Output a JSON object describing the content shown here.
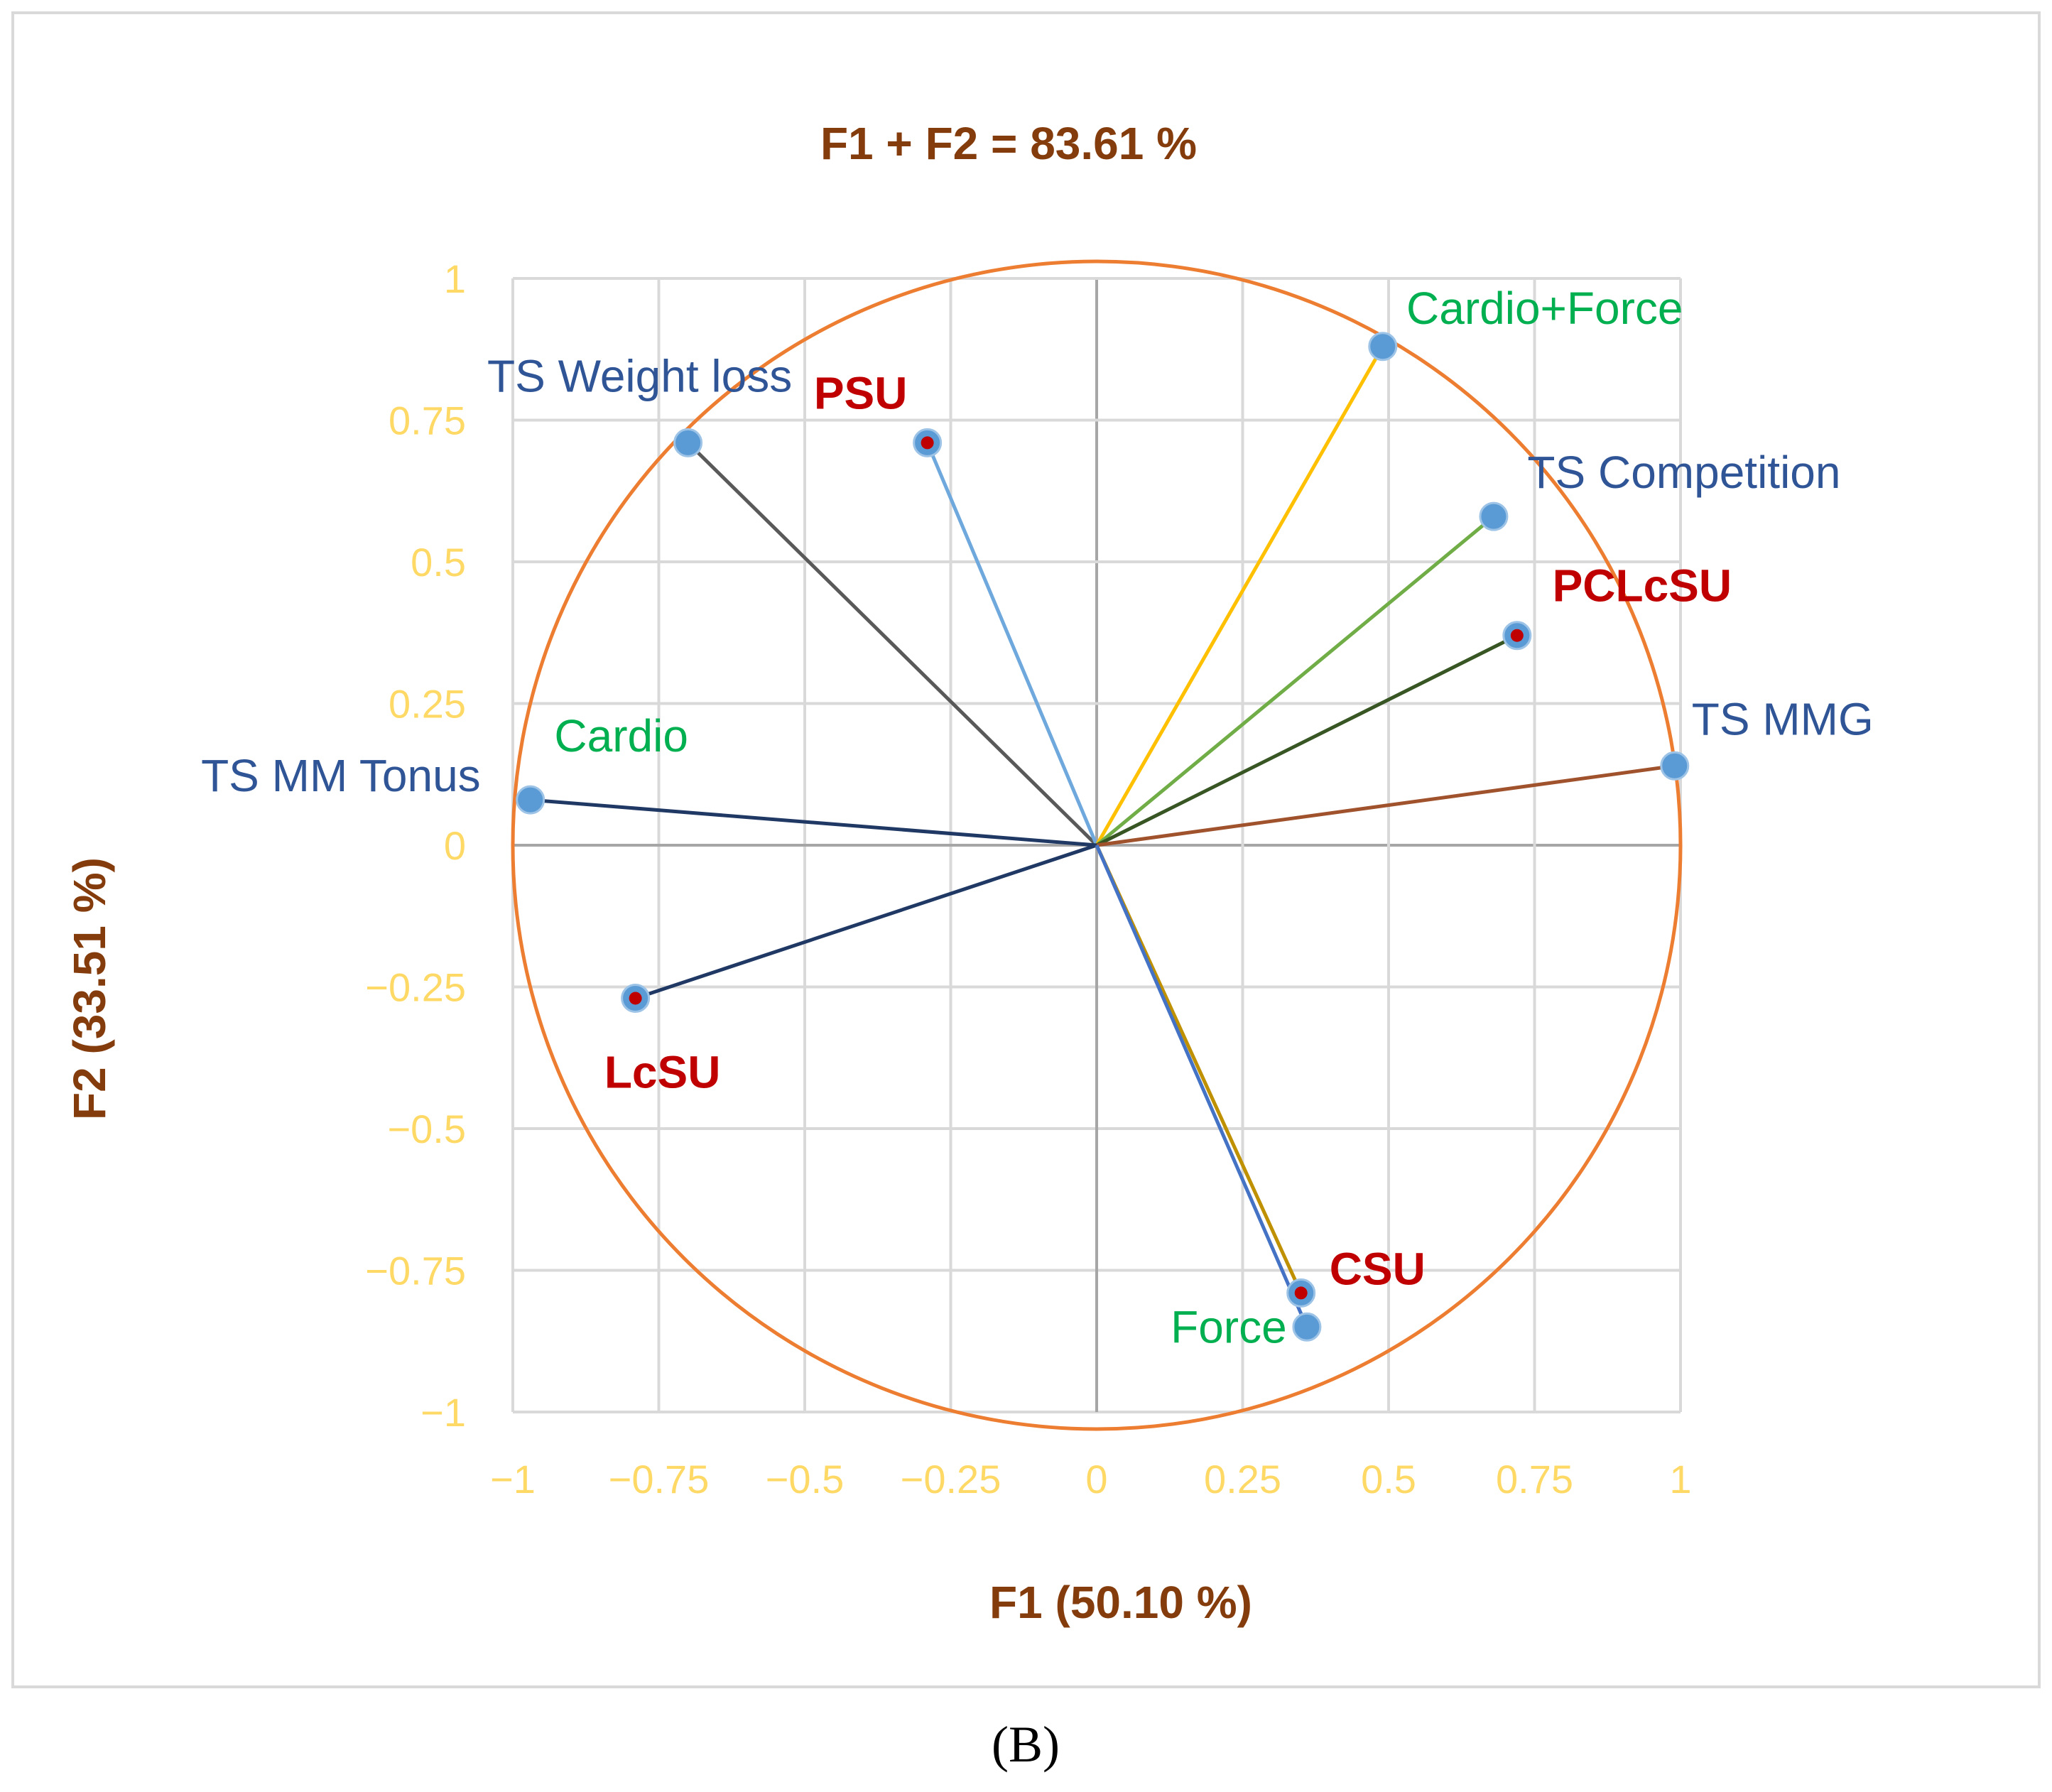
{
  "chart_data": {
    "type": "scatter",
    "title": "F1 + F2 = 83.61 %",
    "xlabel": "F1 (50.10 %)",
    "ylabel": "F2 (33.51 %)",
    "xlim": [
      -1,
      1
    ],
    "ylim": [
      -1,
      1
    ],
    "xticks": [
      "−1",
      "−0.75",
      "−0.5",
      "−0.25",
      "0",
      "0.25",
      "0.5",
      "0.75",
      "1"
    ],
    "yticks": [
      "1",
      "0.75",
      "0.5",
      "0.25",
      "0",
      "−0.25",
      "−0.5",
      "−0.75",
      "−1"
    ],
    "grid": true,
    "circle_radius": 1,
    "variables": [
      {
        "name": "TS Weight loss",
        "x": -0.7,
        "y": 0.71,
        "color": "#595959",
        "label_color": "#2f5597"
      },
      {
        "name": "PSU",
        "x": -0.29,
        "y": 0.71,
        "color": "#6fa8dc",
        "label_color": "#c00000",
        "observation": true
      },
      {
        "name": "Cardio+Force",
        "x": 0.49,
        "y": 0.88,
        "color": "#ffc000",
        "label_color": "#00b050"
      },
      {
        "name": "TS Competition",
        "x": 0.68,
        "y": 0.58,
        "color": "#70ad47",
        "label_color": "#2f5597"
      },
      {
        "name": "PCLcSU",
        "x": 0.72,
        "y": 0.37,
        "color": "#375623",
        "label_color": "#c00000",
        "observation": true
      },
      {
        "name": "TS MMG",
        "x": 0.99,
        "y": 0.14,
        "color": "#a0522d",
        "label_color": "#2f5597"
      },
      {
        "name": "TS MM  Tonus",
        "x": -0.97,
        "y": 0.08,
        "color": "#1f3864",
        "label_color": "#2f5597"
      },
      {
        "name": "Cardio",
        "x": -0.97,
        "y": 0.08,
        "color": "#1f3864",
        "label_color": "#00b050",
        "label_only": true
      },
      {
        "name": "LcSU",
        "x": -0.79,
        "y": -0.27,
        "color": "#1f3864",
        "label_color": "#c00000",
        "observation": true
      },
      {
        "name": "CSU",
        "x": 0.35,
        "y": -0.79,
        "color": "#bf9000",
        "label_color": "#c00000",
        "observation": true
      },
      {
        "name": "Force",
        "x": 0.36,
        "y": -0.85,
        "color": "#4472c4",
        "label_color": "#00b050"
      }
    ]
  },
  "panel_label": "(B)"
}
